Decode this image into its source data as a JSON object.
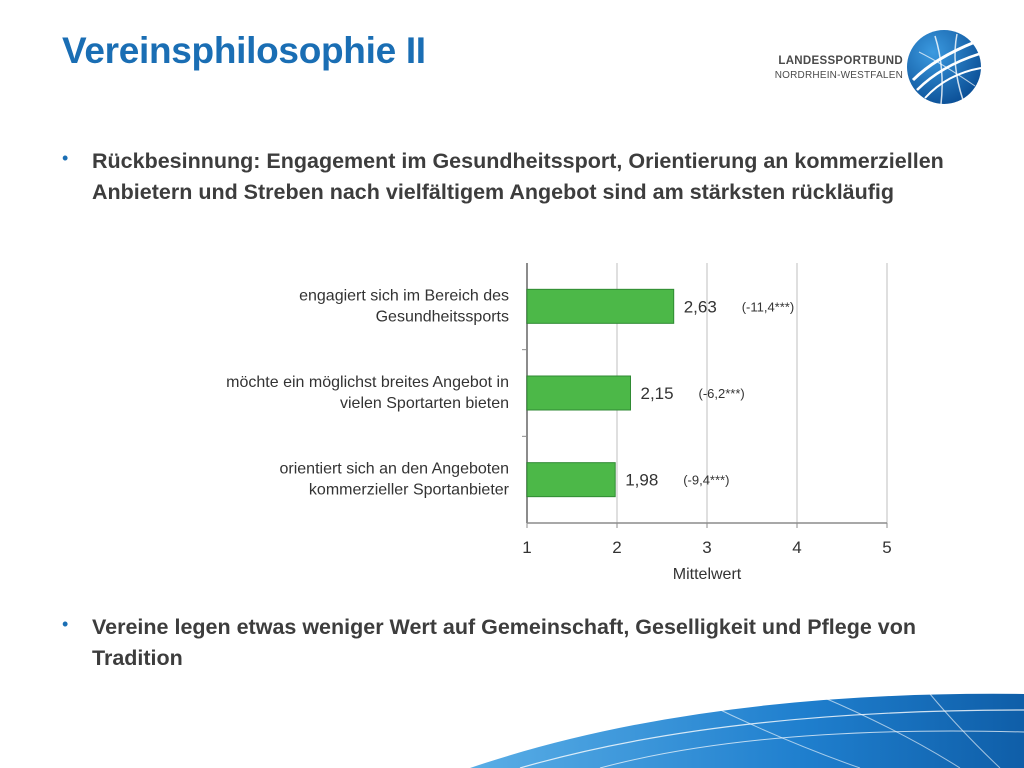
{
  "slide": {
    "title": "Vereinsphilosophie II",
    "bullets": [
      "Rückbesinnung: Engagement im Gesundheitssport, Orientierung an kommerziellen Anbietern und Streben nach vielfältigem Angebot sind am stärksten rückläufig",
      "Vereine legen etwas weniger Wert auf Gemeinschaft, Geselligkeit und Pflege von Tradition"
    ]
  },
  "logo": {
    "line1": "LANDESSPORTBUND",
    "line2": "NORDRHEIN-WESTFALEN",
    "emblem": "globe-swoosh-icon"
  },
  "colors": {
    "title": "#1a6eb4",
    "bar_fill": "#4cb848",
    "bar_stroke": "#2f8a33",
    "text": "#3d3d3d"
  },
  "chart_data": {
    "type": "bar",
    "orientation": "horizontal",
    "categories": [
      [
        "engagiert sich im Bereich des",
        "Gesundheitssports"
      ],
      [
        "möchte ein möglichst breites Angebot in",
        "vielen Sportarten bieten"
      ],
      [
        "orientiert sich an den Angeboten",
        "kommerzieller Sportanbieter"
      ]
    ],
    "values": [
      2.63,
      2.15,
      1.98
    ],
    "value_labels": [
      "2,63",
      "2,15",
      "1,98"
    ],
    "annotations": [
      "(-11,4***)",
      "(-6,2***)",
      "(-9,4***)"
    ],
    "xlabel": "Mittelwert",
    "xlim": [
      1,
      5
    ],
    "xticks": [
      1,
      2,
      3,
      4,
      5
    ],
    "grid": true
  }
}
